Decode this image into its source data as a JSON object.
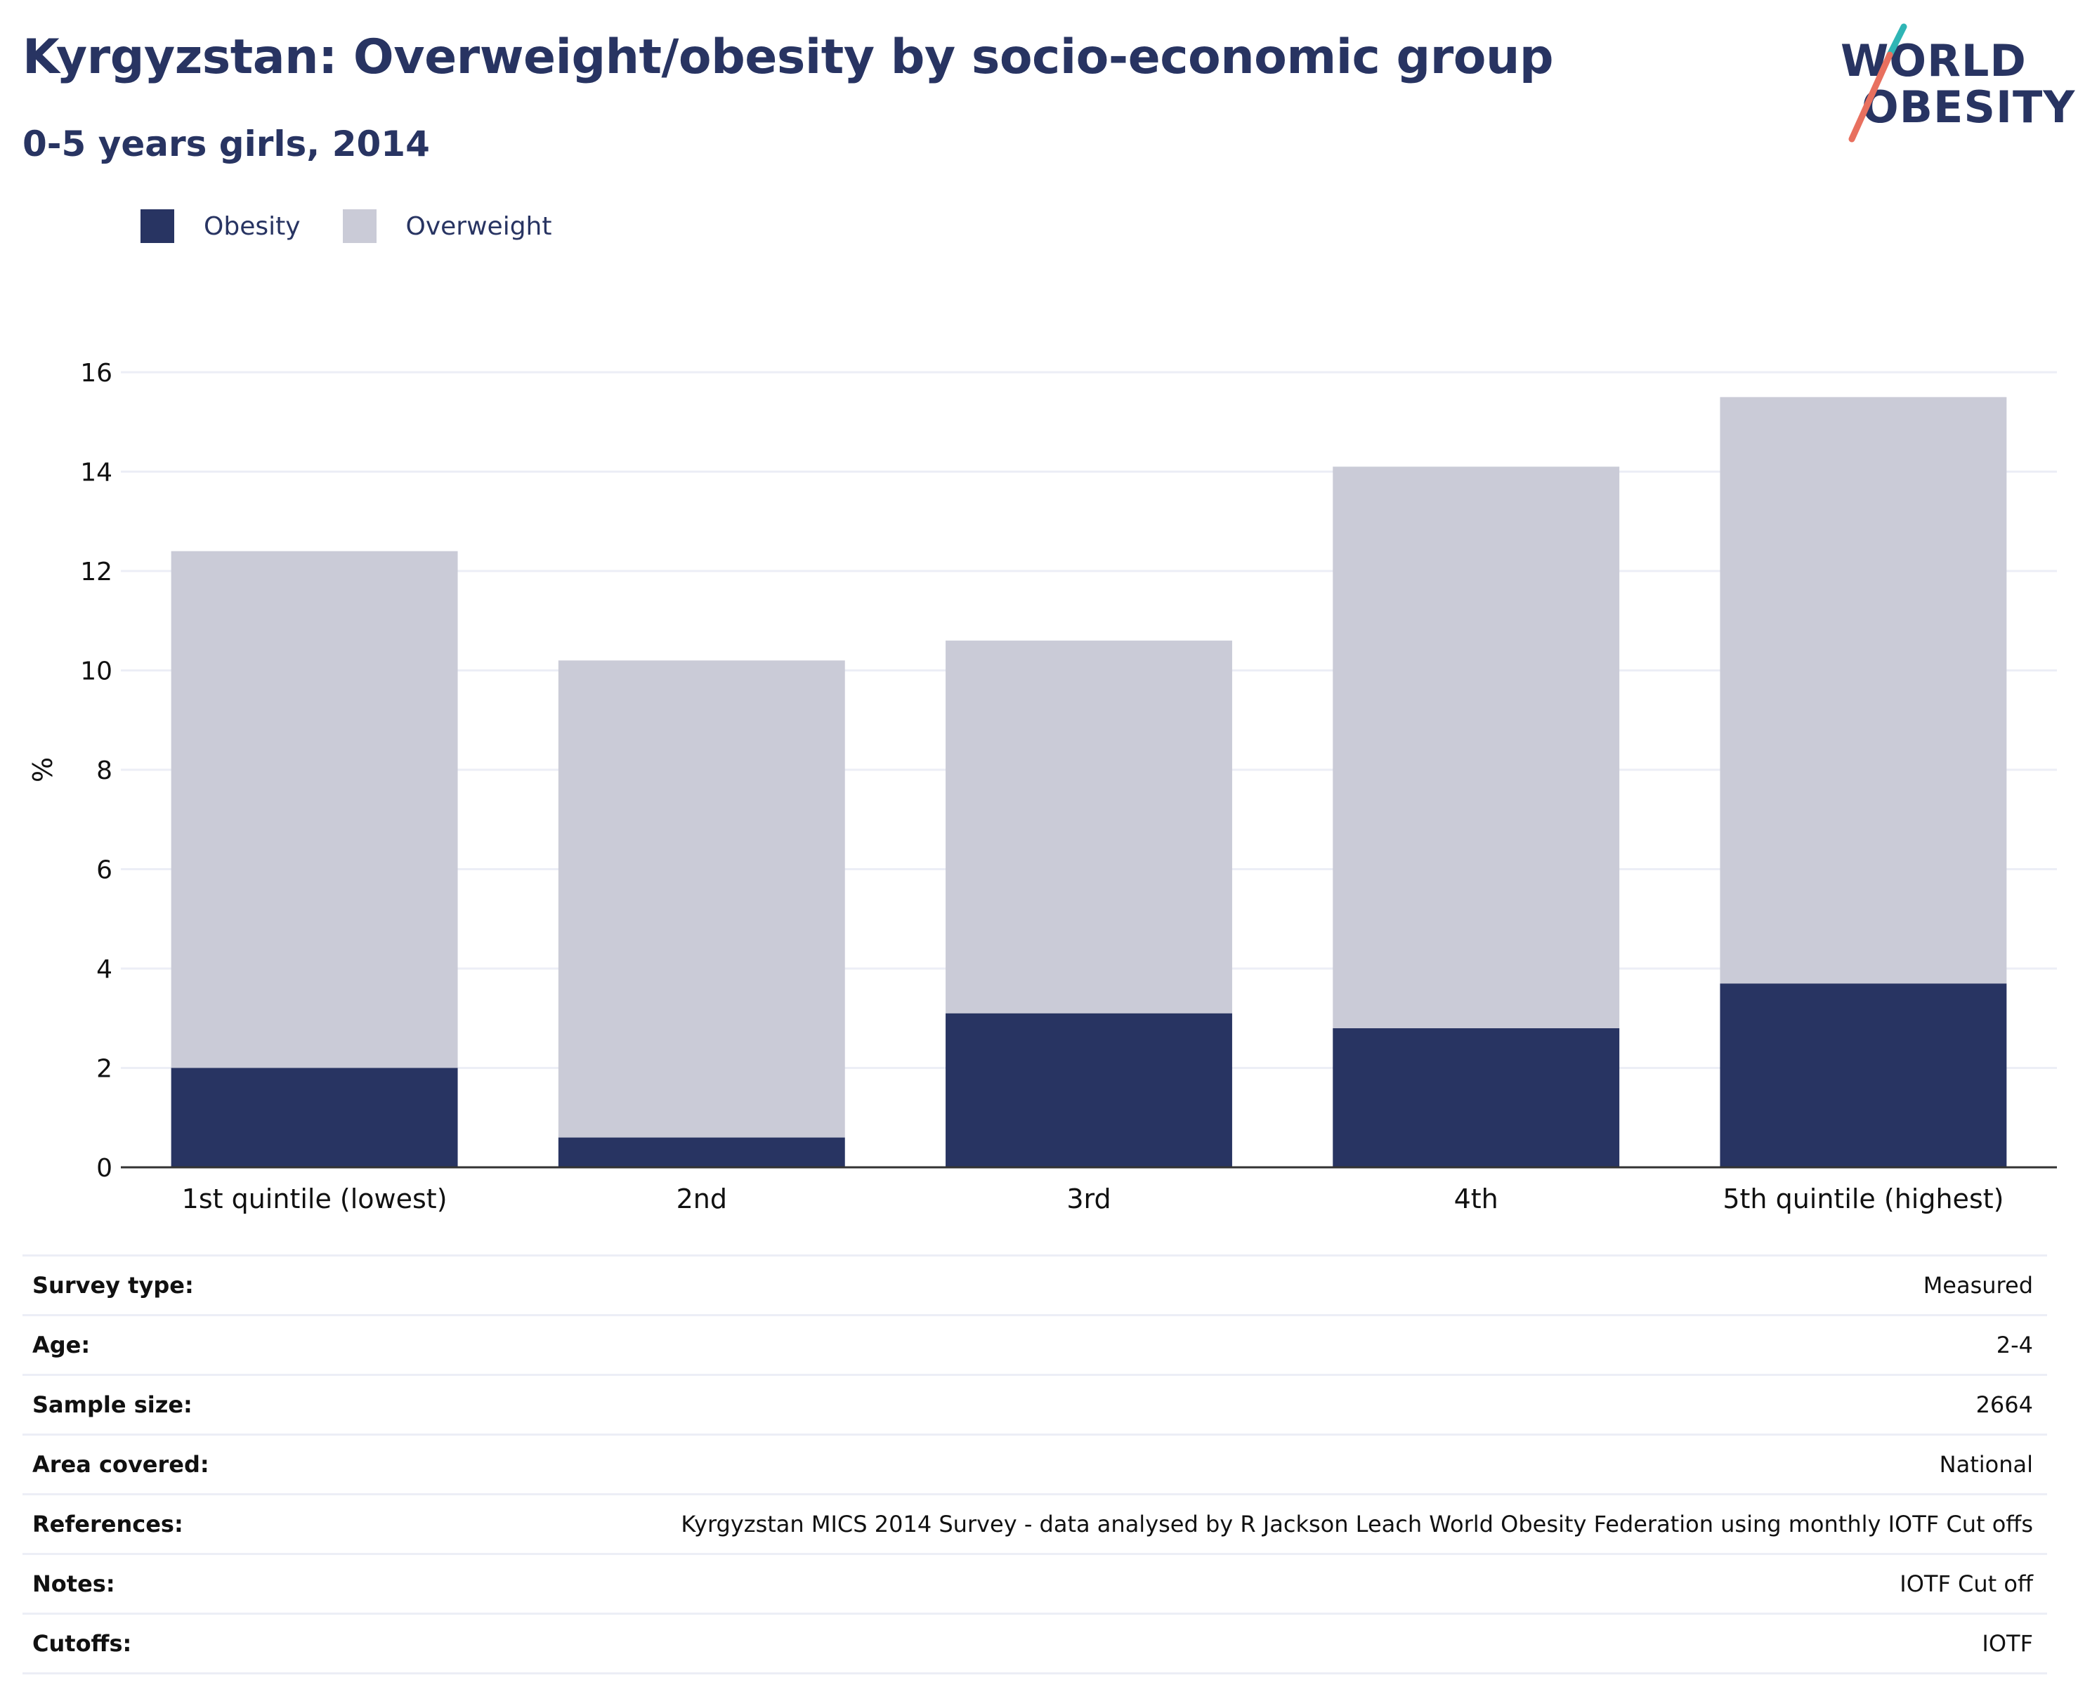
{
  "header": {
    "title": "Kyrgyzstan: Overweight/obesity by socio-economic group",
    "subtitle": "0-5 years girls, 2014"
  },
  "logo": {
    "line1": "WORLD",
    "line2": "OBESITY",
    "accent_colors": [
      "#2fb5b5",
      "#e8705f"
    ]
  },
  "legend": [
    {
      "label": "Obesity",
      "color": "#283462"
    },
    {
      "label": "Overweight",
      "color": "#cacbd7"
    }
  ],
  "chart_data": {
    "type": "bar",
    "stacked": true,
    "categories": [
      "1st quintile (lowest)",
      "2nd",
      "3rd",
      "4th",
      "5th quintile (highest)"
    ],
    "series": [
      {
        "name": "Obesity",
        "color": "#283462",
        "values": [
          2.0,
          0.6,
          3.1,
          2.8,
          3.7
        ]
      },
      {
        "name": "Overweight",
        "color": "#cacbd7",
        "values": [
          10.4,
          9.6,
          7.5,
          11.3,
          11.8
        ]
      }
    ],
    "ylabel": "%",
    "ylim": [
      0,
      16
    ],
    "yticks": [
      0,
      2,
      4,
      6,
      8,
      10,
      12,
      14,
      16
    ],
    "grid": true,
    "legend_position": "top-left"
  },
  "info": [
    {
      "label": "Survey type:",
      "value": "Measured"
    },
    {
      "label": "Age:",
      "value": "2-4"
    },
    {
      "label": "Sample size:",
      "value": "2664"
    },
    {
      "label": "Area covered:",
      "value": "National"
    },
    {
      "label": "References:",
      "value": "Kyrgyzstan MICS 2014 Survey - data analysed by R Jackson Leach World Obesity Federation using monthly IOTF Cut offs"
    },
    {
      "label": "Notes:",
      "value": "IOTF Cut off"
    },
    {
      "label": "Cutoffs:",
      "value": "IOTF"
    }
  ]
}
